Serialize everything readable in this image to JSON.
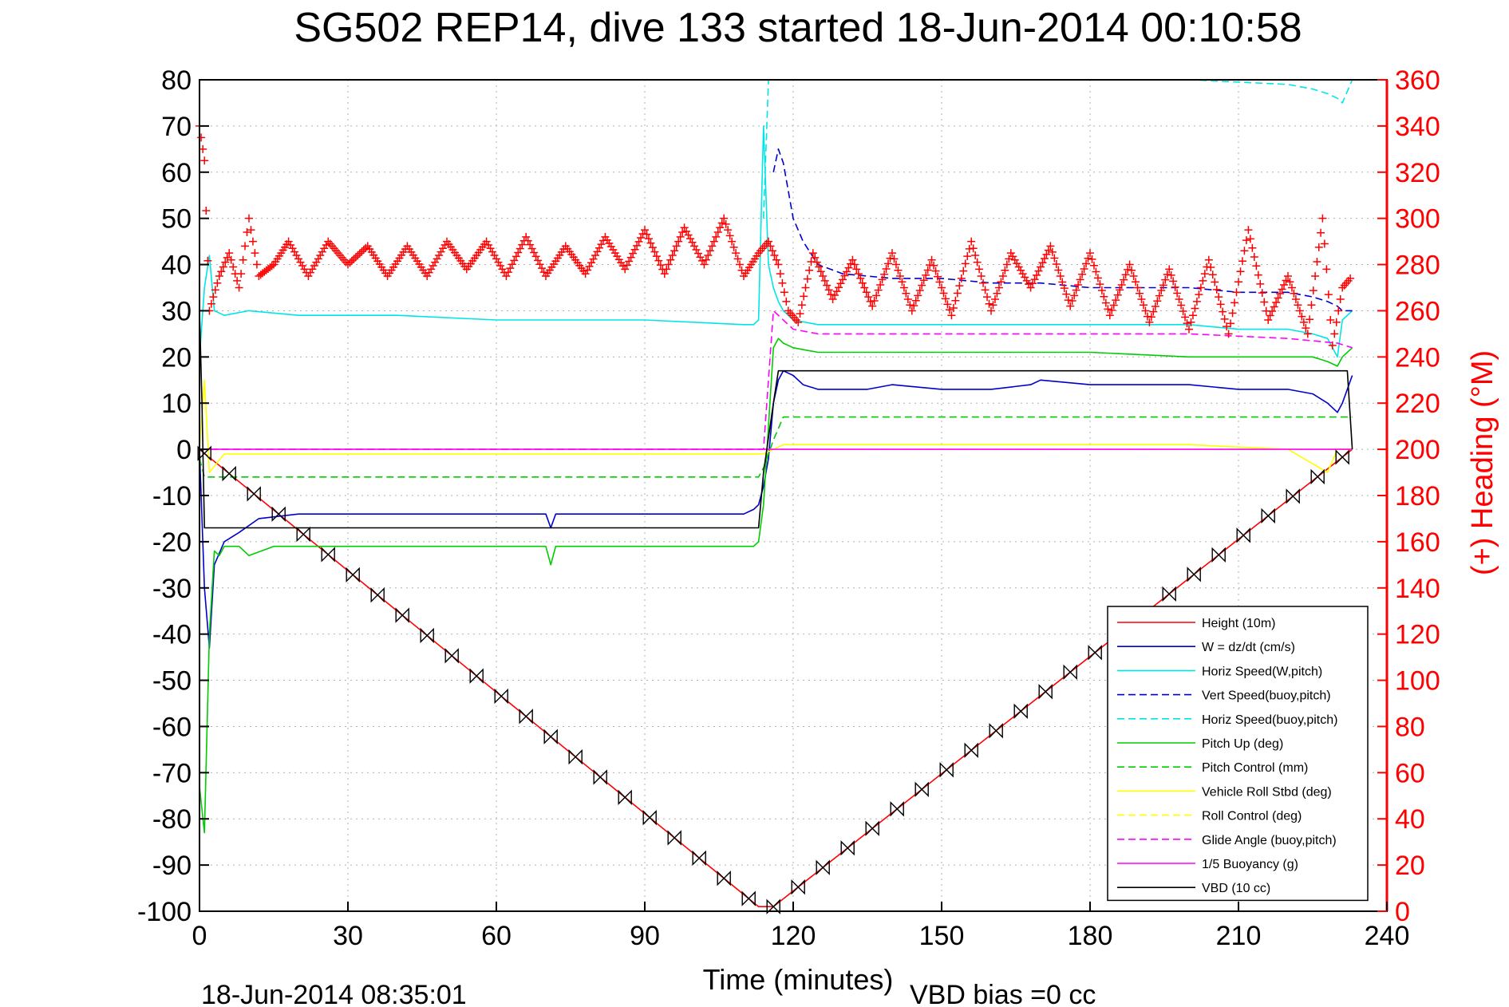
{
  "chart_data": {
    "type": "line",
    "title": "SG502 REP14, dive 133 started 18-Jun-2014 00:10:58",
    "xlabel": "Time (minutes)",
    "ylabel": "",
    "y2label": "(+) Heading (°M)",
    "xlim": [
      0,
      240
    ],
    "ylim": [
      -100,
      80
    ],
    "y2lim": [
      0,
      360
    ],
    "xticks": [
      "0",
      "30",
      "60",
      "90",
      "120",
      "150",
      "180",
      "210",
      "240"
    ],
    "yticks": [
      "80",
      "70",
      "60",
      "50",
      "40",
      "30",
      "20",
      "10",
      "0",
      "-10",
      "-20",
      "-30",
      "-40",
      "-50",
      "-60",
      "-70",
      "-80",
      "-90",
      "-100"
    ],
    "y2ticks": [
      "360",
      "340",
      "320",
      "300",
      "280",
      "260",
      "240",
      "220",
      "200",
      "180",
      "160",
      "140",
      "120",
      "100",
      "80",
      "60",
      "40",
      "20",
      "0"
    ],
    "grid": true,
    "legend_position": "bottom-right",
    "footer_left": "18-Jun-2014 08:35:01",
    "footer_right": "VBD bias =0 cc",
    "colors": {
      "red": "#ff0000",
      "blue": "#0000cc",
      "cyan": "#00e5e5",
      "green": "#00cc00",
      "yellow": "#ffff00",
      "magenta": "#ff00ff",
      "black": "#000000",
      "grid": "#b0b0b0"
    },
    "series": [
      {
        "name": "Height (10m)",
        "color": "#ff0000",
        "style": "solid",
        "x": [
          0,
          113,
          116,
          233
        ],
        "y": [
          0,
          -99,
          -99,
          0
        ]
      },
      {
        "name": "W = dz/dt (cm/s)",
        "color": "#0000cc",
        "style": "solid",
        "x": [
          0,
          1,
          2,
          3,
          5,
          8,
          12,
          20,
          40,
          60,
          70,
          71,
          72,
          90,
          110,
          112,
          113,
          114,
          115,
          116,
          117,
          118,
          120,
          122,
          125,
          135,
          140,
          150,
          160,
          168,
          170,
          180,
          200,
          210,
          220,
          225,
          228,
          230,
          231,
          233
        ],
        "y": [
          0,
          -30,
          -43,
          -25,
          -20,
          -18,
          -15,
          -14,
          -14,
          -14,
          -14,
          -17,
          -14,
          -14,
          -14,
          -13,
          -12,
          -8,
          -2,
          10,
          15,
          17,
          16,
          14,
          13,
          13,
          14,
          13,
          13,
          14,
          15,
          14,
          14,
          13,
          13,
          12,
          10,
          8,
          10,
          16
        ]
      },
      {
        "name": "Horiz Speed(W,pitch)",
        "color": "#00e5e5",
        "style": "solid",
        "x": [
          0,
          1,
          2,
          3,
          5,
          10,
          20,
          40,
          60,
          90,
          110,
          112,
          113,
          114,
          115,
          116,
          117,
          118,
          120,
          125,
          135,
          150,
          160,
          180,
          200,
          210,
          220,
          225,
          228,
          230,
          231,
          233
        ],
        "y": [
          20,
          35,
          42,
          30,
          29,
          30,
          29,
          29,
          28,
          28,
          27,
          27,
          28,
          70,
          40,
          35,
          32,
          30,
          28,
          27,
          27,
          27,
          27,
          27,
          27,
          26,
          26,
          25,
          24,
          20,
          28,
          30
        ]
      },
      {
        "name": "Vert Speed(buoy,pitch)",
        "color": "#0000cc",
        "style": "dashed",
        "x": [
          116,
          117,
          118,
          120,
          122,
          125,
          130,
          140,
          150,
          160,
          170,
          180,
          200,
          210,
          220,
          225,
          228,
          230,
          231,
          233
        ],
        "y": [
          60,
          65,
          62,
          50,
          45,
          40,
          38,
          37,
          37,
          36,
          36,
          35,
          35,
          34,
          34,
          33,
          32,
          31,
          30,
          30
        ]
      },
      {
        "name": "Horiz Speed(buoy,pitch)",
        "color": "#00e5e5",
        "style": "dashed",
        "x": [
          114,
          115,
          116,
          118,
          120,
          140,
          160,
          200,
          220,
          225,
          228,
          230,
          231,
          233
        ],
        "y": [
          50,
          80,
          80,
          80,
          80,
          80,
          80,
          80,
          79,
          78,
          77,
          76,
          75,
          80
        ]
      },
      {
        "name": "Pitch Up (deg)",
        "color": "#00cc00",
        "style": "solid",
        "x": [
          0,
          1,
          2,
          3,
          4,
          5,
          8,
          10,
          15,
          20,
          40,
          60,
          70,
          71,
          72,
          90,
          110,
          112,
          113,
          114,
          115,
          116,
          117,
          118,
          120,
          125,
          135,
          150,
          160,
          170,
          180,
          200,
          210,
          220,
          225,
          228,
          230,
          231,
          233
        ],
        "y": [
          -73,
          -83,
          -40,
          -22,
          -23,
          -21,
          -21,
          -23,
          -21,
          -21,
          -21,
          -21,
          -21,
          -25,
          -21,
          -21,
          -21,
          -21,
          -20,
          -12,
          5,
          22,
          24,
          23,
          22,
          21,
          21,
          21,
          21,
          21,
          21,
          20,
          20,
          20,
          20,
          19,
          18,
          20,
          22
        ]
      },
      {
        "name": "Pitch Control (mm)",
        "color": "#00cc00",
        "style": "dashed",
        "x": [
          0,
          1,
          113,
          114,
          116,
          118,
          233
        ],
        "y": [
          -2,
          -6,
          -6,
          -4,
          2,
          7,
          7
        ]
      },
      {
        "name": "Vehicle Roll Stbd (deg)",
        "color": "#ffff00",
        "style": "solid",
        "x": [
          0,
          1,
          2,
          5,
          20,
          40,
          60,
          90,
          113,
          114,
          116,
          118,
          120,
          150,
          200,
          220,
          228,
          230,
          233
        ],
        "y": [
          0,
          15,
          -5,
          -1,
          -1,
          -1,
          -1,
          -1,
          -1,
          -1,
          0,
          1,
          1,
          1,
          1,
          0,
          -5,
          0,
          0
        ]
      },
      {
        "name": "Roll Control (deg)",
        "color": "#ffff00",
        "style": "dashed",
        "x": [
          0,
          233
        ],
        "y": [
          0,
          0
        ]
      },
      {
        "name": "Glide Angle (buoy,pitch)",
        "color": "#ff00ff",
        "style": "dashed",
        "x": [
          0,
          114,
          116,
          118,
          120,
          125,
          150,
          200,
          220,
          230,
          233
        ],
        "y": [
          0,
          0,
          30,
          28,
          26,
          25,
          25,
          25,
          24,
          23,
          22
        ]
      },
      {
        "name": "1/5 Buoyancy (g)",
        "color": "#ff00ff",
        "style": "solid",
        "x": [
          0,
          233
        ],
        "y": [
          0,
          0
        ]
      },
      {
        "name": "VBD (10 cc)",
        "color": "#000000",
        "style": "solid",
        "x": [
          0,
          0.5,
          1,
          113,
          114,
          116,
          117,
          231,
          232,
          233
        ],
        "y": [
          30,
          10,
          -17,
          -17,
          -5,
          10,
          17,
          17,
          17,
          0
        ]
      },
      {
        "name": "Heading",
        "color": "#ff0000",
        "style": "plus",
        "axis": "right",
        "x": [
          0,
          1,
          2,
          4,
          6,
          8,
          10,
          12,
          15,
          18,
          22,
          26,
          30,
          34,
          38,
          42,
          46,
          50,
          54,
          58,
          62,
          66,
          70,
          74,
          78,
          82,
          86,
          90,
          94,
          98,
          102,
          106,
          110,
          113,
          115,
          117,
          119,
          121,
          124,
          128,
          132,
          136,
          140,
          144,
          148,
          152,
          156,
          160,
          164,
          168,
          172,
          176,
          180,
          184,
          188,
          192,
          196,
          200,
          204,
          208,
          212,
          216,
          220,
          224,
          227,
          229,
          231,
          233
        ],
        "y": [
          340,
          325,
          260,
          275,
          285,
          270,
          300,
          275,
          280,
          290,
          275,
          290,
          280,
          288,
          275,
          288,
          275,
          290,
          278,
          290,
          275,
          292,
          275,
          288,
          276,
          292,
          278,
          295,
          276,
          296,
          280,
          300,
          275,
          285,
          290,
          280,
          260,
          255,
          285,
          265,
          282,
          262,
          285,
          260,
          282,
          258,
          290,
          260,
          285,
          270,
          288,
          262,
          285,
          258,
          280,
          255,
          278,
          252,
          282,
          250,
          295,
          256,
          275,
          250,
          300,
          245,
          270,
          275
        ]
      }
    ]
  }
}
